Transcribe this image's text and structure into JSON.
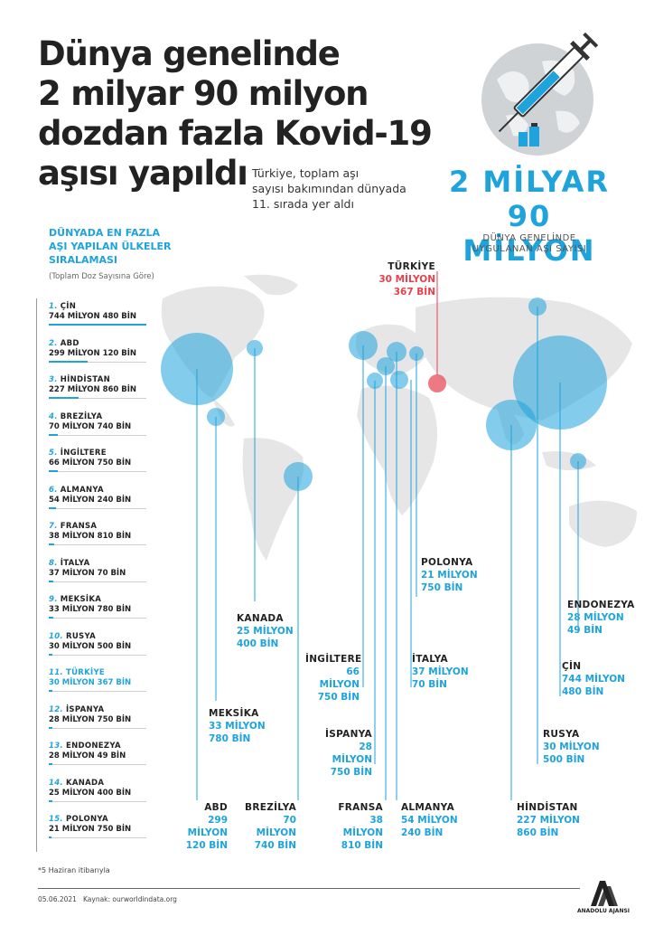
{
  "headline": [
    "Dünya genelinde",
    "2 milyar 90 milyon",
    "dozdan fazla Kovid-19",
    "aşısı yapıldı"
  ],
  "subtitle": [
    "Türkiye, toplam aşı",
    "sayısı bakımından dünyada",
    "11. sırada yer aldı"
  ],
  "big_number": {
    "line1": "2 MİLYAR",
    "line2": "90 MİLYON",
    "caption1": "DÜNYA GENELİNDE",
    "caption2": "UYGULANAN AŞI SAYISI"
  },
  "ranking": {
    "title": [
      "DÜNYADA EN FAZLA",
      "AŞI YAPILAN ÜLKELER",
      "SIRALAMASI"
    ],
    "note": "(Toplam Doz Sayısına Göre)",
    "items": [
      {
        "rank": "1.",
        "country": "ÇİN",
        "value": "744 MİLYON 480 BİN",
        "doses_million": 744.48
      },
      {
        "rank": "2.",
        "country": "ABD",
        "value": "299 MİLYON 120 BİN",
        "doses_million": 299.12
      },
      {
        "rank": "3.",
        "country": "HİNDİSTAN",
        "value": "227 MİLYON 860 BİN",
        "doses_million": 227.86
      },
      {
        "rank": "4.",
        "country": "BREZİLYA",
        "value": "70 MİLYON 740 BİN",
        "doses_million": 70.74
      },
      {
        "rank": "5.",
        "country": "İNGİLTERE",
        "value": "66 MİLYON 750 BİN",
        "doses_million": 66.75
      },
      {
        "rank": "6.",
        "country": "ALMANYA",
        "value": "54 MİLYON 240 BİN",
        "doses_million": 54.24
      },
      {
        "rank": "7.",
        "country": "FRANSA",
        "value": "38 MİLYON 810 BİN",
        "doses_million": 38.81
      },
      {
        "rank": "8.",
        "country": "İTALYA",
        "value": "37 MİLYON 70 BİN",
        "doses_million": 37.07
      },
      {
        "rank": "9.",
        "country": "MEKSİKA",
        "value": "33 MİLYON 780 BİN",
        "doses_million": 33.78
      },
      {
        "rank": "10.",
        "country": "RUSYA",
        "value": "30 MİLYON 500 BİN",
        "doses_million": 30.5
      },
      {
        "rank": "11.",
        "country": "TÜRKİYE",
        "value": "30 MİLYON 367 BİN",
        "doses_million": 30.367
      },
      {
        "rank": "12.",
        "country": "İSPANYA",
        "value": "28 MİLYON 750 BİN",
        "doses_million": 28.75
      },
      {
        "rank": "13.",
        "country": "ENDONEZYA",
        "value": "28 MİLYON 49 BİN",
        "doses_million": 28.049
      },
      {
        "rank": "14.",
        "country": "KANADA",
        "value": "25 MİLYON 400 BİN",
        "doses_million": 25.4
      },
      {
        "rank": "15.",
        "country": "POLONYA",
        "value": "21 MİLYON 750 BİN",
        "doses_million": 21.75
      }
    ]
  },
  "map_labels": {
    "turkiye": {
      "country": "TÜRKİYE",
      "v1": "30 MİLYON",
      "v2": "367 BİN"
    },
    "polonya": {
      "country": "POLONYA",
      "v1": "21 MİLYON",
      "v2": "750 BİN"
    },
    "endonezya": {
      "country": "ENDONEZYA",
      "v1": "28 MİLYON",
      "v2": "49 BİN"
    },
    "kanada": {
      "country": "KANADA",
      "v1": "25 MİLYON",
      "v2": "400 BİN"
    },
    "ingiltere": {
      "country": "İNGİLTERE",
      "v1": "66 MİLYON",
      "v2": "750 BİN"
    },
    "italya": {
      "country": "İTALYA",
      "v1": "37 MİLYON",
      "v2": "70 BİN"
    },
    "cin": {
      "country": "ÇİN",
      "v1": "744 MİLYON",
      "v2": "480 BİN"
    },
    "meksika": {
      "country": "MEKSİKA",
      "v1": "33 MİLYON",
      "v2": "780 BİN"
    },
    "rusya": {
      "country": "RUSYA",
      "v1": "30 MİLYON",
      "v2": "500 BİN"
    },
    "ispanya": {
      "country": "İSPANYA",
      "v1": "28 MİLYON",
      "v2": "750 BİN"
    },
    "abd": {
      "country": "ABD",
      "v1": "299 MİLYON",
      "v2": "120 BİN"
    },
    "brezilya": {
      "country": "BREZİLYA",
      "v1": "70 MİLYON",
      "v2": "740 BİN"
    },
    "fransa": {
      "country": "FRANSA",
      "v1": "38 MİLYON",
      "v2": "810 BİN"
    },
    "almanya": {
      "country": "ALMANYA",
      "v1": "54 MİLYON",
      "v2": "240 BİN"
    },
    "hindistan": {
      "country": "HİNDİSTAN",
      "v1": "227 MİLYON",
      "v2": "860 BİN"
    }
  },
  "footnote": "*5 Haziran itibarıyla",
  "date": "05.06.2021",
  "source": "Kaynak: ourworldindata.org",
  "logo_text": "ANADOLU AJANSI",
  "colors": {
    "accent": "#1ea3dc",
    "highlight": "#e5424d",
    "map": "#e6e6e6"
  }
}
